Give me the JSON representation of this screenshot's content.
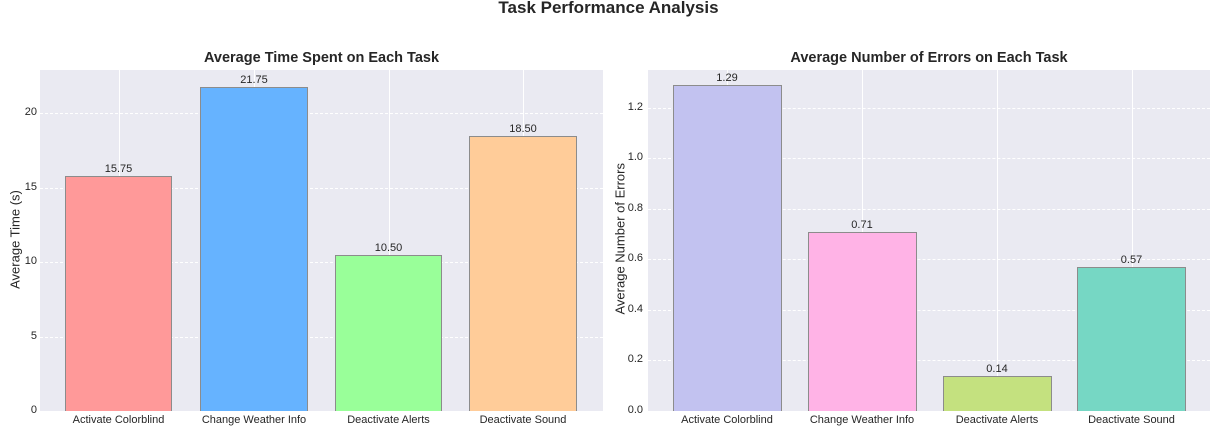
{
  "figure": {
    "title": "Task Performance Analysis"
  },
  "chart_data": [
    {
      "type": "bar",
      "title": "Average Time Spent on Each Task",
      "xlabel": "",
      "ylabel": "Average Time (s)",
      "categories": [
        "Activate Colorblind",
        "Change Weather Info",
        "Deactivate Alerts",
        "Deactivate Sound"
      ],
      "values": [
        15.75,
        21.75,
        10.5,
        18.5
      ],
      "value_labels": [
        "15.75",
        "21.75",
        "10.50",
        "18.50"
      ],
      "colors": [
        "#ff9999",
        "#66b3ff",
        "#99ff99",
        "#ffcc99"
      ],
      "yticks": [
        0,
        5,
        10,
        15,
        20
      ],
      "ytick_labels": [
        "0",
        "5",
        "10",
        "15",
        "20"
      ],
      "ylim": [
        0,
        22.9
      ],
      "grid": true
    },
    {
      "type": "bar",
      "title": "Average Number of Errors on Each Task",
      "xlabel": "",
      "ylabel": "Average Number of Errors",
      "categories": [
        "Activate Colorblind",
        "Change Weather Info",
        "Deactivate Alerts",
        "Deactivate Sound"
      ],
      "values": [
        1.29,
        0.71,
        0.14,
        0.57
      ],
      "value_labels": [
        "1.29",
        "0.71",
        "0.14",
        "0.57"
      ],
      "colors": [
        "#c2c2f0",
        "#ffb3e6",
        "#c4e17f",
        "#76d7c4"
      ],
      "yticks": [
        0.0,
        0.2,
        0.4,
        0.6,
        0.8,
        1.0,
        1.2
      ],
      "ytick_labels": [
        "0.0",
        "0.2",
        "0.4",
        "0.6",
        "0.8",
        "1.0",
        "1.2"
      ],
      "ylim": [
        0,
        1.35
      ],
      "grid": true
    }
  ]
}
